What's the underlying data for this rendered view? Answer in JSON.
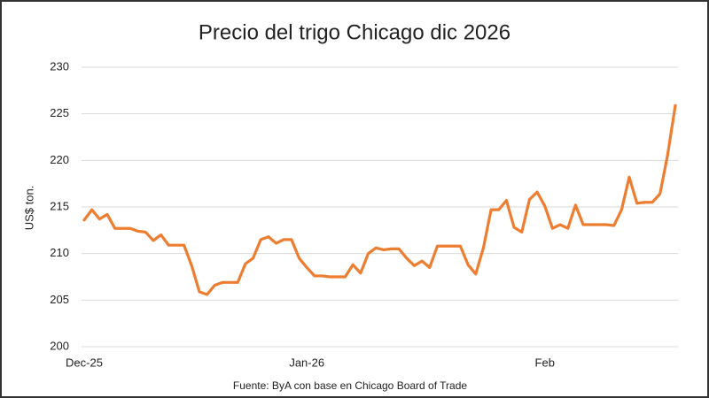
{
  "chart_data": {
    "type": "line",
    "title": "Precio del trigo Chicago dic 2026",
    "y_label": "US$ ton.",
    "source": "Fuente: ByA con base en Chicago Board of Trade",
    "color": "#ed7d31",
    "grid": true,
    "ylim": [
      200,
      230
    ],
    "yticks": [
      200,
      205,
      210,
      215,
      220,
      225,
      230
    ],
    "categories": [
      "Dec-25",
      null,
      null,
      null,
      null,
      null,
      null,
      null,
      null,
      null,
      null,
      null,
      null,
      null,
      null,
      null,
      null,
      null,
      null,
      null,
      null,
      null,
      null,
      null,
      null,
      null,
      null,
      null,
      null,
      "Jan-26",
      null,
      null,
      null,
      null,
      null,
      null,
      null,
      null,
      null,
      null,
      null,
      null,
      null,
      null,
      null,
      null,
      null,
      null,
      null,
      null,
      null,
      null,
      null,
      null,
      null,
      null,
      null,
      null,
      null,
      null,
      "Feb",
      null,
      null,
      null,
      null,
      null,
      null,
      null,
      null,
      null,
      null,
      null,
      null,
      null,
      null,
      null,
      null,
      null
    ],
    "values": [
      213.6,
      214.7,
      213.7,
      214.2,
      212.7,
      212.7,
      212.7,
      212.4,
      212.3,
      211.4,
      212.0,
      210.9,
      210.9,
      210.9,
      208.7,
      205.9,
      205.6,
      206.6,
      206.9,
      206.9,
      206.9,
      208.9,
      209.5,
      211.5,
      211.8,
      211.1,
      211.5,
      211.5,
      209.5,
      208.5,
      207.6,
      207.6,
      207.5,
      207.5,
      207.5,
      208.8,
      207.9,
      210.0,
      210.6,
      210.4,
      210.5,
      210.5,
      209.5,
      208.7,
      209.2,
      208.5,
      210.8,
      210.8,
      210.8,
      210.8,
      208.8,
      207.8,
      210.6,
      214.7,
      214.7,
      215.7,
      212.8,
      212.3,
      215.8,
      216.6,
      215.1,
      212.7,
      213.1,
      212.7,
      215.2,
      213.1,
      213.1,
      213.1,
      213.1,
      213.0,
      214.7,
      218.2,
      215.4,
      215.5,
      215.5,
      216.4,
      220.6,
      225.9
    ]
  }
}
